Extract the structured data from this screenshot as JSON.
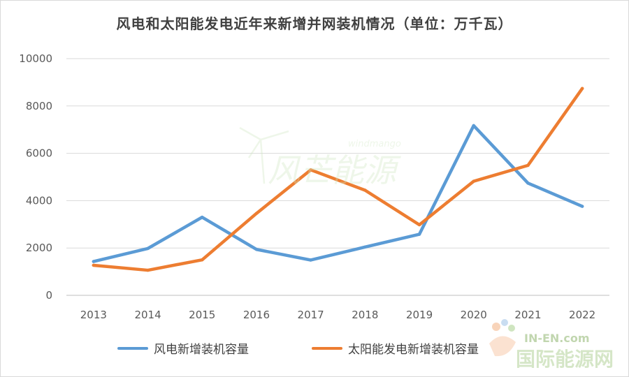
{
  "chart_data": {
    "type": "line",
    "title": "风电和太阳能发电近年来新增并网装机情况（单位：万千瓦）",
    "categories": [
      "2013",
      "2014",
      "2015",
      "2016",
      "2017",
      "2018",
      "2019",
      "2020",
      "2021",
      "2022"
    ],
    "series": [
      {
        "name": "风电新增装机容量",
        "color": "#5b9bd5",
        "values": [
          1430,
          1980,
          3300,
          1940,
          1490,
          2040,
          2580,
          7170,
          4740,
          3760
        ]
      },
      {
        "name": "太阳能发电新增装机容量",
        "color": "#ed7d31",
        "values": [
          1270,
          1060,
          1500,
          3460,
          5300,
          4440,
          2980,
          4820,
          5490,
          8740
        ]
      }
    ],
    "ylim": [
      0,
      10000
    ],
    "yticks": [
      0,
      2000,
      4000,
      6000,
      8000,
      10000
    ],
    "grid": true,
    "legend": "bottom"
  },
  "watermarks": {
    "windmango_brand": "windmango",
    "windmango_cn": "风芒能源",
    "inen_brand": "IN-EN.com",
    "inen_cn": "国际能源网"
  }
}
